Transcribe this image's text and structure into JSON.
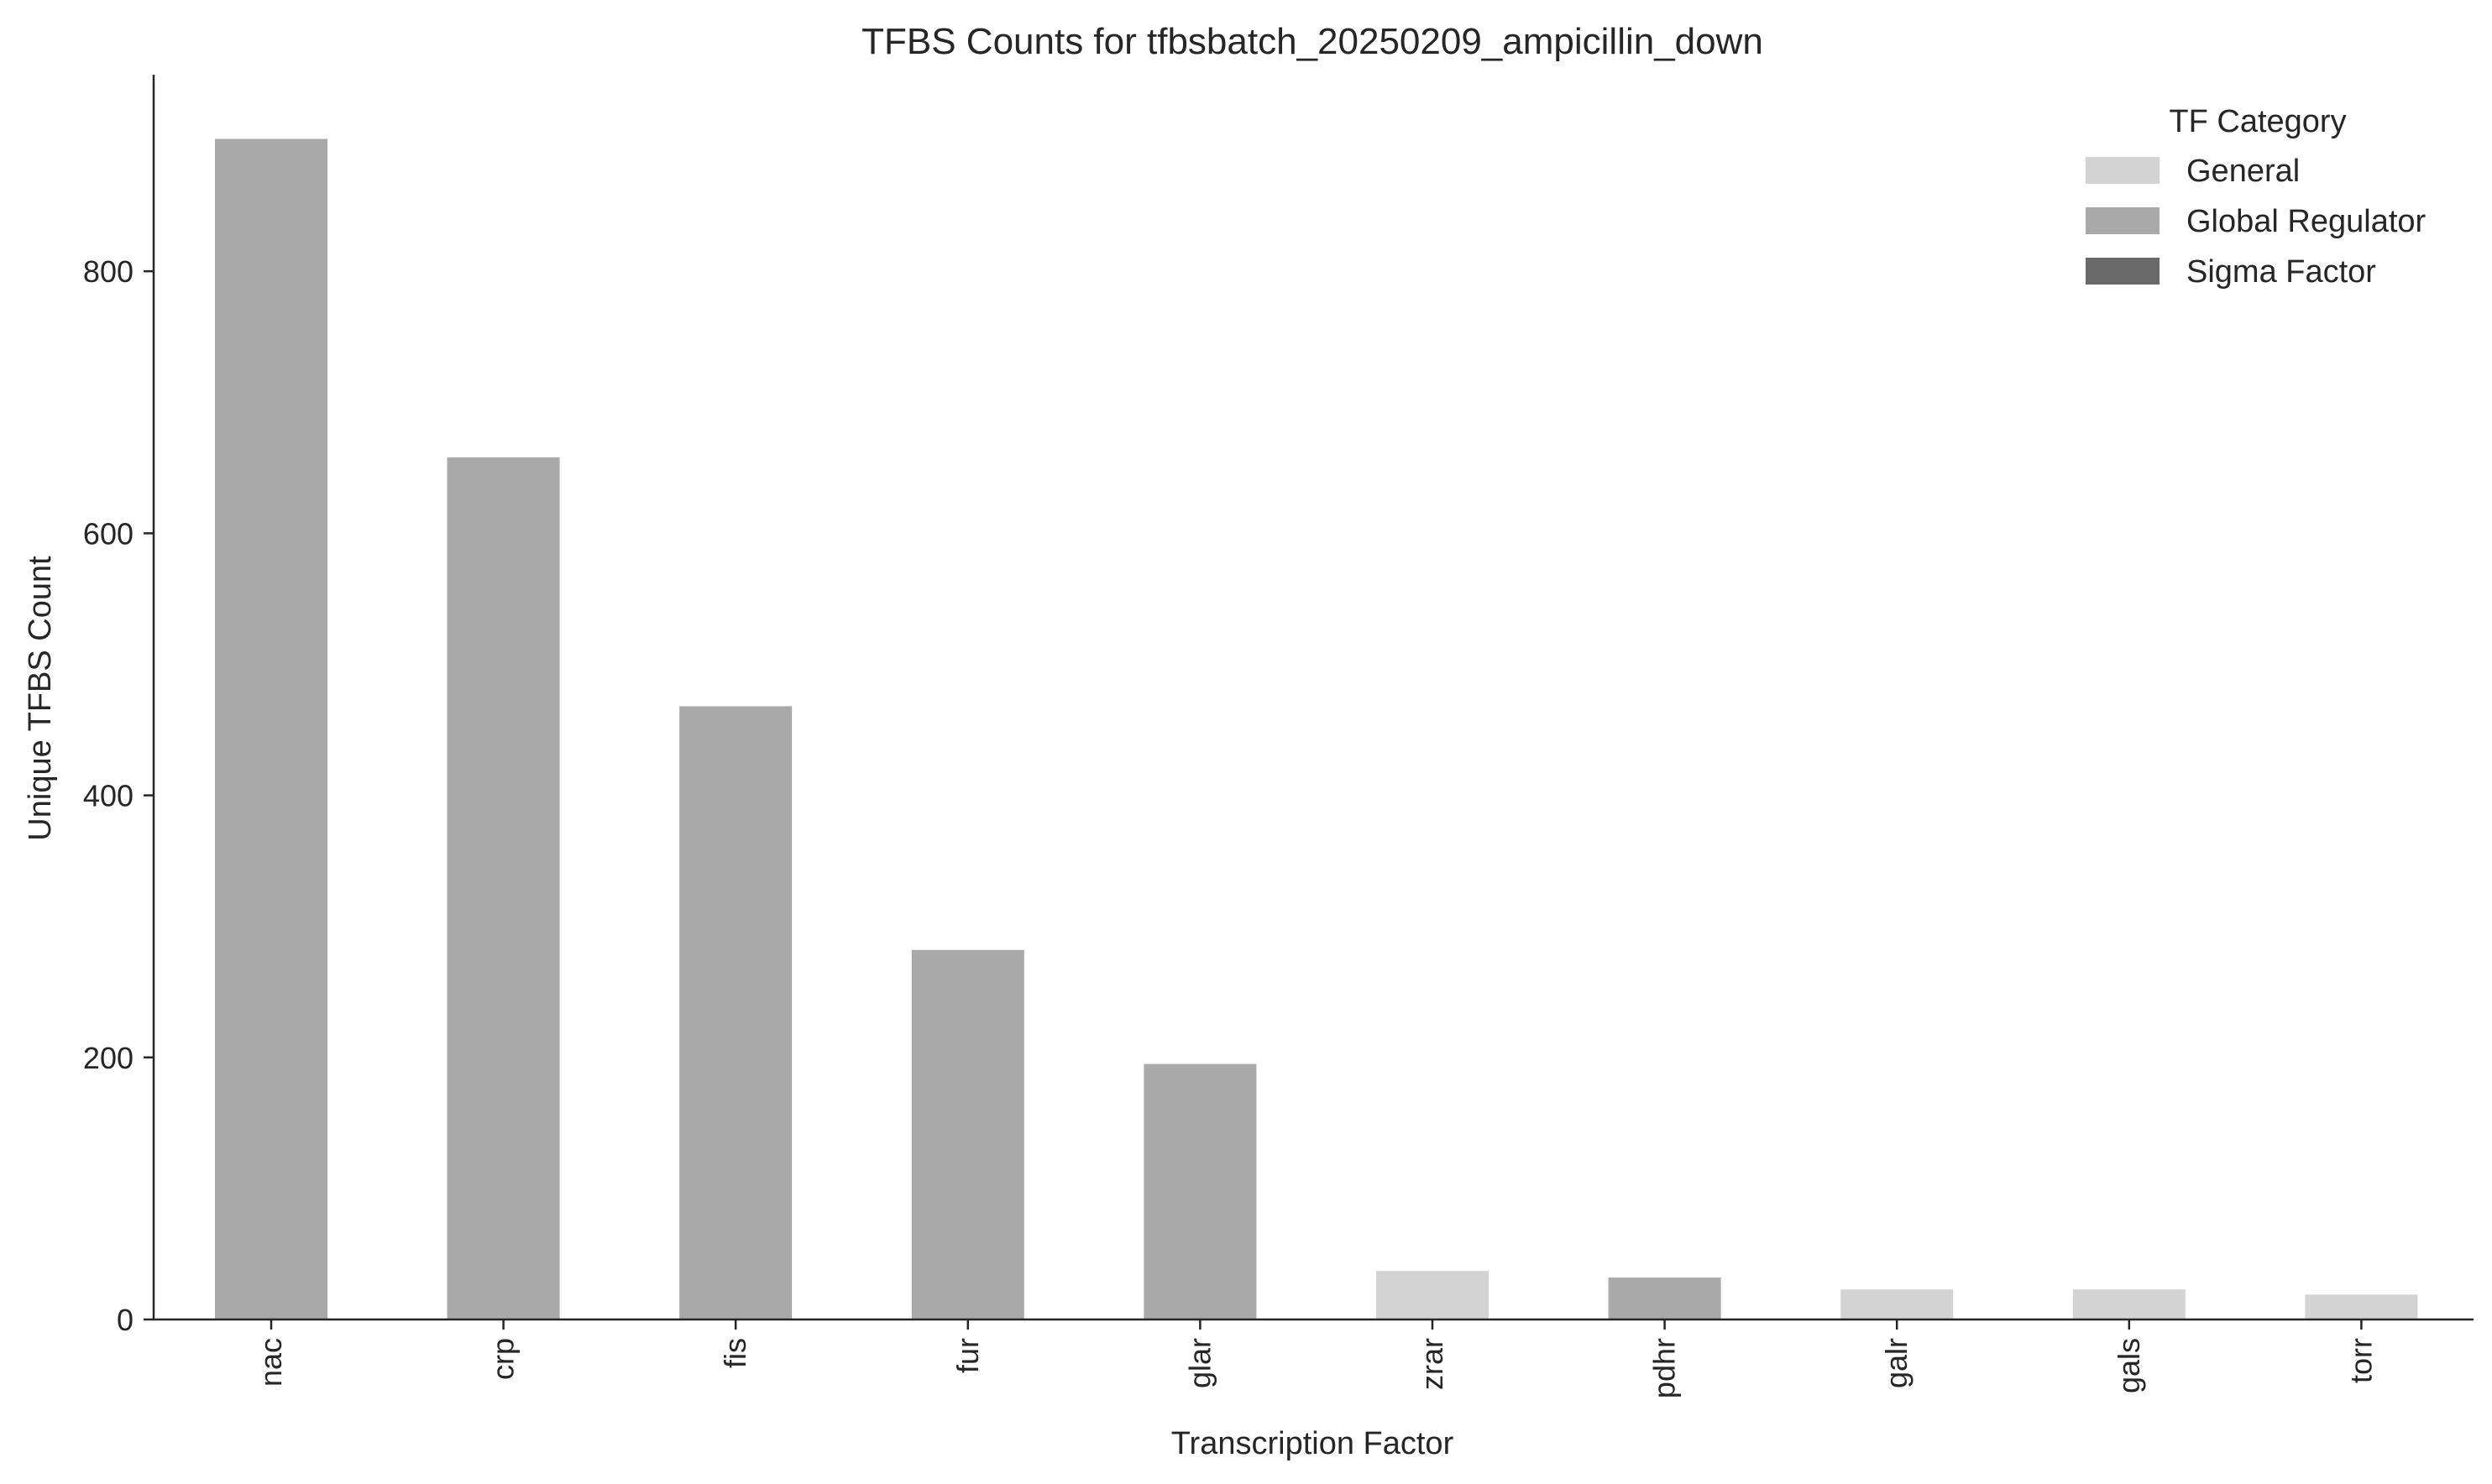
{
  "chart_data": {
    "type": "bar",
    "title": "TFBS Counts for tfbsbatch_20250209_ampicillin_down",
    "xlabel": "Transcription Factor",
    "ylabel": "Unique TFBS Count",
    "ylim": [
      0,
      950
    ],
    "yticks": [
      0,
      200,
      400,
      600,
      800
    ],
    "grid": false,
    "categories": [
      "nac",
      "crp",
      "fis",
      "fur",
      "glar",
      "zrar",
      "pdhr",
      "galr",
      "gals",
      "torr"
    ],
    "values": [
      901,
      658,
      468,
      282,
      195,
      37,
      32,
      23,
      23,
      19
    ],
    "bar_categories": [
      "Global Regulator",
      "Global Regulator",
      "Global Regulator",
      "Global Regulator",
      "Global Regulator",
      "General",
      "Global Regulator",
      "General",
      "General",
      "General"
    ],
    "legend": {
      "title": "TF Category",
      "placement": "top-right",
      "entries": [
        {
          "label": "General",
          "color": "#d3d3d3"
        },
        {
          "label": "Global Regulator",
          "color": "#a9a9a9"
        },
        {
          "label": "Sigma Factor",
          "color": "#696969"
        }
      ]
    }
  }
}
